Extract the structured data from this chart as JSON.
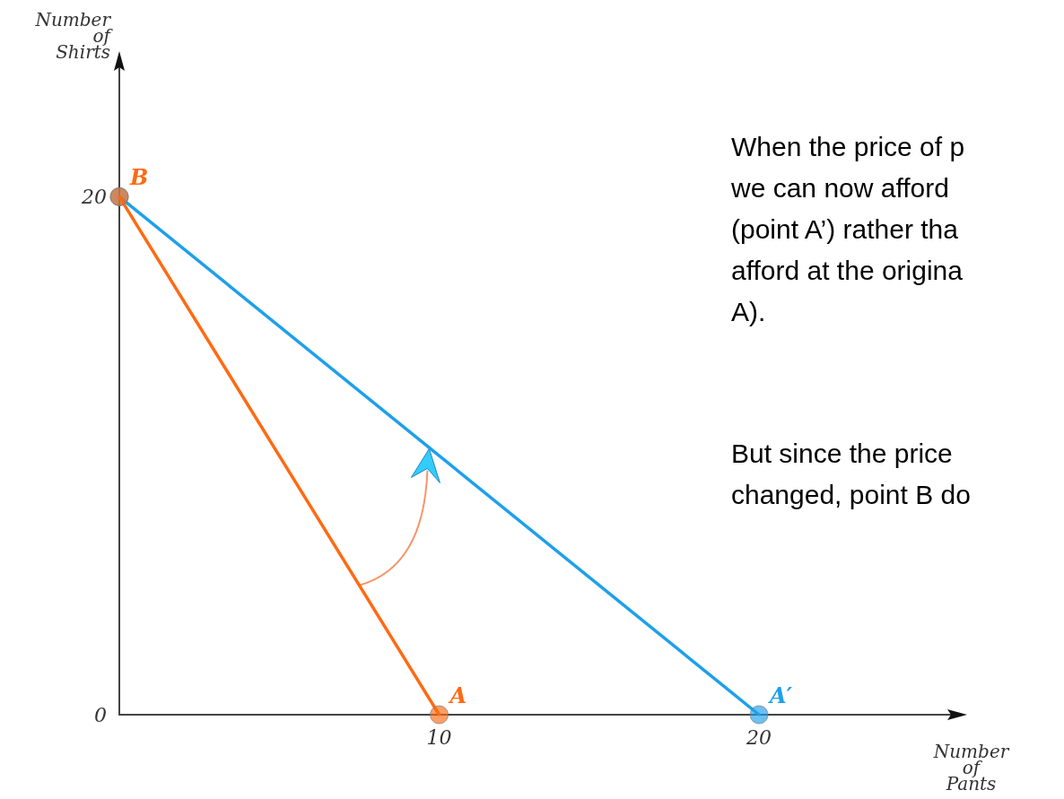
{
  "chart_data": {
    "type": "line",
    "xlabel": "Number\nof\nPants",
    "ylabel": "Number\nof\nShirts",
    "xlim": [
      0,
      26
    ],
    "ylim": [
      0,
      25
    ],
    "xticks": [
      10,
      20
    ],
    "yticks": [
      0,
      20
    ],
    "series": [
      {
        "x": [
          0,
          10
        ],
        "values": [
          20,
          0
        ],
        "color": "#ff6a13"
      },
      {
        "x": [
          0,
          20
        ],
        "values": [
          20,
          0
        ],
        "color": "#1ea0ea"
      }
    ],
    "marker": "circle",
    "line_style": "solid",
    "grid": false,
    "annotations": [
      {
        "text": "B",
        "x": 0,
        "y": 20
      },
      {
        "text": "A",
        "x": 10,
        "y": 0
      },
      {
        "text": "A′",
        "x": 20,
        "y": 0
      },
      "When the price of p\nwe can now afford\n(point A’) rather tha\nafford at the origina\nA).",
      "But since the price\nchanged, point B do"
    ]
  }
}
